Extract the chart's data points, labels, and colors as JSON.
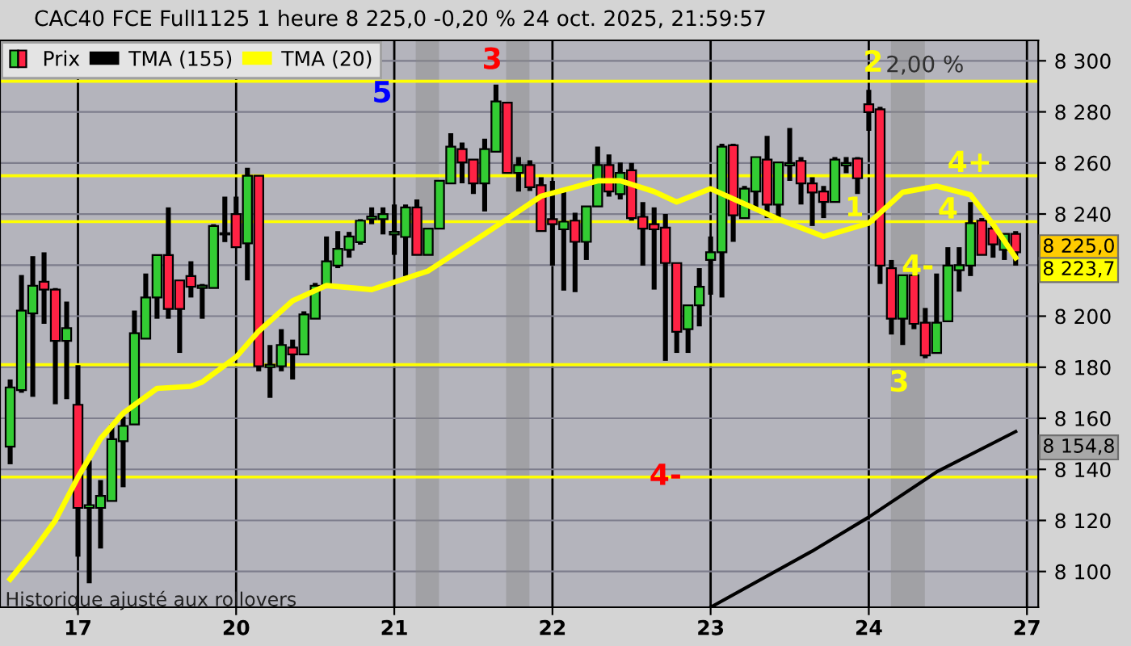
{
  "chart_data": {
    "type": "candlestick",
    "title": "CAC40 FCE Full1125 1 heure 8 225,0 -0,20 % 24 oct. 2025, 21:59:57",
    "categories": [
      null,
      null,
      null,
      null,
      null,
      null,
      "17",
      null,
      null,
      null,
      null,
      null,
      null,
      null,
      null,
      null,
      null,
      null,
      null,
      null,
      "20",
      null,
      null,
      null,
      null,
      null,
      null,
      null,
      null,
      null,
      null,
      null,
      null,
      null,
      "21",
      null,
      null,
      null,
      null,
      null,
      null,
      null,
      null,
      null,
      null,
      null,
      null,
      null,
      "22",
      null,
      null,
      null,
      null,
      null,
      null,
      null,
      null,
      null,
      null,
      null,
      null,
      null,
      "23",
      null,
      null,
      null,
      null,
      null,
      null,
      null,
      null,
      null,
      null,
      null,
      null,
      null,
      "24",
      null,
      null,
      null,
      null,
      null,
      null,
      null,
      null,
      null,
      null,
      null,
      null,
      null,
      "27"
    ],
    "series": [
      {
        "name": "Prix",
        "color": "#33cc33",
        "ohlc": [
          [
            8148.9,
            8175.2,
            8142.0,
            8172.1
          ],
          [
            8171,
            8216.1,
            8170,
            8202.2
          ],
          [
            8201.1,
            8223.5,
            8168.4,
            8211.9
          ],
          [
            8213.5,
            8225,
            8197,
            8210.4
          ],
          [
            8210.4,
            8211,
            8165.5,
            8190.3
          ],
          [
            8190.3,
            8205.7,
            8167.5,
            8195.3
          ],
          [
            8165.3,
            8180.8,
            8105.8,
            8124.9
          ],
          [
            8124.9,
            8143.5,
            8095.4,
            8126
          ],
          [
            8124.9,
            8135.8,
            8109,
            8129.6
          ],
          [
            8127.6,
            8157.6,
            8127.6,
            8151.8
          ],
          [
            8151,
            8160.7,
            8133,
            8157
          ],
          [
            8157.6,
            8202.2,
            8157.6,
            8193.3
          ],
          [
            8191.2,
            8216.7,
            8191.2,
            8207.3
          ],
          [
            8207.3,
            8223.9,
            8199,
            8223.9
          ],
          [
            8223.9,
            8242.6,
            8199,
            8202.8
          ],
          [
            8214,
            8214,
            8185.6,
            8202.8
          ],
          [
            8215.7,
            8221.5,
            8207.3,
            8211.5
          ],
          [
            8211,
            8212.6,
            8199,
            8212
          ],
          [
            8211,
            8236,
            8211,
            8235.3
          ],
          [
            8232,
            8246.8,
            8229,
            8232.5
          ],
          [
            8240,
            8246.8,
            8227,
            8227
          ],
          [
            8228.5,
            8258.1,
            8214,
            8255
          ],
          [
            8255,
            8255,
            8178.4,
            8180.4
          ],
          [
            8180,
            8188.7,
            8168,
            8181
          ],
          [
            8180.4,
            8194.9,
            8178.4,
            8188.7
          ],
          [
            8187.7,
            8190.8,
            8175.2,
            8185
          ],
          [
            8185,
            8201.9,
            8185,
            8200.7
          ],
          [
            8199,
            8213,
            8199,
            8211.9
          ],
          [
            8211.9,
            8231.2,
            8211.9,
            8221.5
          ],
          [
            8219.8,
            8233.3,
            8218.8,
            8226.4
          ],
          [
            8226,
            8233,
            8222.9,
            8231.2
          ],
          [
            8229,
            8238,
            8228,
            8237.4
          ],
          [
            8238,
            8242.6,
            8236,
            8239
          ],
          [
            8238,
            8242.6,
            8232,
            8240
          ],
          [
            8232,
            8243.7,
            8224,
            8233
          ],
          [
            8231,
            8243.7,
            8215.7,
            8242.6
          ],
          [
            8242.6,
            8245.7,
            8224,
            8224
          ],
          [
            8224,
            8234.3,
            8224,
            8234.3
          ],
          [
            8234.3,
            8253,
            8234.3,
            8253
          ],
          [
            8252,
            8271.6,
            8252,
            8266.4
          ],
          [
            8265.4,
            8268,
            8252,
            8260.2
          ],
          [
            8261.3,
            8261.3,
            8247.8,
            8252
          ],
          [
            8252,
            8269.5,
            8241,
            8265.4
          ],
          [
            8264.4,
            8290.7,
            8264.4,
            8284.1
          ],
          [
            8283.6,
            8284,
            8256,
            8256.1
          ],
          [
            8256.1,
            8262.3,
            8248.8,
            8259.2
          ],
          [
            8259.2,
            8261,
            8249,
            8250.5
          ],
          [
            8251.3,
            8254.4,
            8233.3,
            8233.3
          ],
          [
            8238,
            8253,
            8219.8,
            8236
          ],
          [
            8234,
            8250,
            8210,
            8237
          ],
          [
            8237.4,
            8240.5,
            8209.4,
            8229.1
          ],
          [
            8229.1,
            8243,
            8222,
            8243
          ],
          [
            8243,
            8266.4,
            8243,
            8259.2
          ],
          [
            8259.2,
            8263.3,
            8246.8,
            8248.8
          ],
          [
            8247.8,
            8260.2,
            8245.7,
            8256.1
          ],
          [
            8257.1,
            8260,
            8237.4,
            8238.4
          ],
          [
            8238.9,
            8244.7,
            8219.8,
            8234.3
          ],
          [
            8236,
            8242.6,
            8210.4,
            8234
          ],
          [
            8234.7,
            8240,
            8182.5,
            8220.8
          ],
          [
            8220.8,
            8221,
            8185.6,
            8193.9
          ],
          [
            8194.9,
            8204.2,
            8185.6,
            8204.2
          ],
          [
            8204.2,
            8218.8,
            8196,
            8211.5
          ],
          [
            8222,
            8231.2,
            8208.4,
            8225
          ],
          [
            8225,
            8267.5,
            8207.3,
            8266.4
          ],
          [
            8266.9,
            8267.5,
            8229.1,
            8239.5
          ],
          [
            8238.4,
            8251,
            8238.4,
            8249.9
          ],
          [
            8248.8,
            8262.3,
            8242.6,
            8262.3
          ],
          [
            8261.3,
            8270.6,
            8238.4,
            8243.7
          ],
          [
            8243.7,
            8260.2,
            8238.4,
            8260.2
          ],
          [
            8259,
            8273.7,
            8253,
            8260
          ],
          [
            8260.8,
            8262.3,
            8243.7,
            8252
          ],
          [
            8252,
            8254.4,
            8235.3,
            8248.4
          ],
          [
            8248.8,
            8251,
            8238.4,
            8244.7
          ],
          [
            8244.7,
            8262.3,
            8244.7,
            8261.3
          ],
          [
            8259,
            8262.3,
            8256,
            8260
          ],
          [
            8261.7,
            8262.3,
            8247.8,
            8254
          ],
          [
            8283,
            8288.6,
            8272.6,
            8279.9
          ],
          [
            8281,
            8282,
            8212.6,
            8219.8
          ],
          [
            8218.8,
            8222,
            8192.8,
            8199
          ],
          [
            8199,
            8216,
            8188.7,
            8216
          ],
          [
            8216,
            8216,
            8194.9,
            8197
          ],
          [
            8197.4,
            8203.2,
            8183.5,
            8184.6
          ],
          [
            8185.6,
            8216.7,
            8185.6,
            8197.4
          ],
          [
            8198,
            8227,
            8198,
            8219.8
          ],
          [
            8218,
            8227,
            8209.6,
            8220
          ],
          [
            8219.8,
            8244.7,
            8215.7,
            8236.4
          ],
          [
            8237.4,
            8238.4,
            8224,
            8224
          ],
          [
            8234.3,
            8235.3,
            8222.9,
            8228.1
          ],
          [
            8226,
            8232.2,
            8222,
            8232.2
          ],
          [
            8232.2,
            8233.3,
            8219.8,
            8225
          ],
          null
        ],
        "colors": [
          "#33cc33",
          "#33cc33",
          "#33cc33",
          "#ff2244",
          "#ff2244",
          "#33cc33",
          "#ff2244",
          "#33cc33",
          "#33cc33",
          "#33cc33",
          "#33cc33",
          "#33cc33",
          "#33cc33",
          "#33cc33",
          "#ff2244",
          "#ff2244",
          "#ff2244",
          "#33cc33",
          "#33cc33",
          "#33cc33",
          "#ff2244",
          "#33cc33",
          "#ff2244",
          "#33cc33",
          "#33cc33",
          "#ff2244",
          "#33cc33",
          "#33cc33",
          "#33cc33",
          "#33cc33",
          "#33cc33",
          "#33cc33",
          "#33cc33",
          "#33cc33",
          "#33cc33",
          "#33cc33",
          "#ff2244",
          "#33cc33",
          "#33cc33",
          "#33cc33",
          "#ff2244",
          "#ff2244",
          "#33cc33",
          "#33cc33",
          "#ff2244",
          "#33cc33",
          "#ff2244",
          "#ff2244",
          "#ff2244",
          "#33cc33",
          "#ff2244",
          "#33cc33",
          "#33cc33",
          "#ff2244",
          "#33cc33",
          "#ff2244",
          "#ff2244",
          "#ff2244",
          "#ff2244",
          "#ff2244",
          "#33cc33",
          "#33cc33",
          "#33cc33",
          "#33cc33",
          "#ff2244",
          "#33cc33",
          "#33cc33",
          "#ff2244",
          "#33cc33",
          "#33cc33",
          "#ff2244",
          "#ff2244",
          "#ff2244",
          "#33cc33",
          "#33cc33",
          "#ff2244",
          "#ff2244",
          "#ff2244",
          "#ff2244",
          "#33cc33",
          "#ff2244",
          "#ff2244",
          "#33cc33",
          "#33cc33",
          "#33cc33",
          "#33cc33",
          "#ff2244",
          "#ff2244",
          "#33cc33",
          "#ff2244",
          null
        ]
      },
      {
        "name": "TMA (155)",
        "type": "line",
        "color": "#000000",
        "values": [
          null,
          null,
          null,
          null,
          null,
          null,
          null,
          null,
          null,
          null,
          null,
          null,
          null,
          null,
          null,
          null,
          null,
          null,
          null,
          null,
          null,
          null,
          null,
          null,
          null,
          null,
          null,
          null,
          null,
          null,
          null,
          null,
          null,
          null,
          null,
          null,
          null,
          null,
          null,
          null,
          null,
          null,
          null,
          null,
          null,
          null,
          null,
          null,
          null,
          null,
          null,
          null,
          null,
          null,
          null,
          null,
          null,
          null,
          null,
          null,
          null,
          null,
          8086,
          null,
          null,
          null,
          null,
          null,
          null,
          null,
          null,
          8108,
          null,
          null,
          null,
          null,
          8121.3,
          null,
          null,
          null,
          null,
          null,
          8139,
          null,
          null,
          null,
          null,
          null,
          null,
          8154.8,
          null
        ]
      },
      {
        "name": "TMA (20)",
        "type": "line",
        "color": "#ffff00",
        "values": [
          8097,
          null,
          8107.8,
          null,
          8120,
          null,
          8136.9,
          null,
          8152,
          null,
          8162,
          null,
          null,
          8171.7,
          null,
          null,
          8172.5,
          8174.2,
          null,
          null,
          8184,
          null,
          8194.1,
          null,
          null,
          8206,
          null,
          null,
          8212,
          null,
          null,
          null,
          8210.4,
          null,
          null,
          null,
          null,
          8217.7,
          null,
          null,
          null,
          null,
          8232.2,
          null,
          null,
          null,
          null,
          8247,
          null,
          null,
          null,
          null,
          8253,
          null,
          8253,
          null,
          null,
          8248.8,
          null,
          8244.7,
          null,
          null,
          8249.9,
          null,
          null,
          null,
          null,
          null,
          8238,
          null,
          null,
          null,
          8231.2,
          null,
          null,
          null,
          8236.4,
          null,
          null,
          8248.5,
          null,
          null,
          8250.9,
          null,
          null,
          8247.5,
          null,
          8236,
          null,
          8222.9,
          null
        ]
      }
    ],
    "ylim": [
      8086,
      8308
    ],
    "yticks": [
      {
        "value": 8100,
        "label": "8 100"
      },
      {
        "value": 8120,
        "label": "8 120"
      },
      {
        "value": 8140,
        "label": "8 140"
      },
      {
        "value": 8160,
        "label": "8 160"
      },
      {
        "value": 8180,
        "label": "8 180"
      },
      {
        "value": 8200,
        "label": "8 200"
      },
      {
        "value": 8220,
        "label": null
      },
      {
        "value": 8240,
        "label": "8 240"
      },
      {
        "value": 8260,
        "label": "8 260"
      },
      {
        "value": 8280,
        "label": "8 280"
      },
      {
        "value": 8300,
        "label": "8 300"
      }
    ],
    "grid": true,
    "legend": "top left",
    "ref_lines": [
      {
        "axis": "y",
        "value": 8292,
        "color": "#ffff00"
      },
      {
        "axis": "y",
        "value": 8255,
        "color": "#ffff00"
      },
      {
        "axis": "y",
        "value": 8237,
        "color": "#ffff00"
      },
      {
        "axis": "y",
        "value": 8181,
        "color": "#ffff00"
      },
      {
        "axis": "y",
        "value": 8137,
        "color": "#ffff00"
      }
    ],
    "annotations": [
      "5",
      "3",
      "2",
      "2,00 %",
      "4+",
      "4",
      "1",
      "4-",
      "3",
      "4-",
      "Historique ajusté aux rollovers",
      "8 225,0",
      "8 223,7",
      "8 154,8"
    ]
  }
}
